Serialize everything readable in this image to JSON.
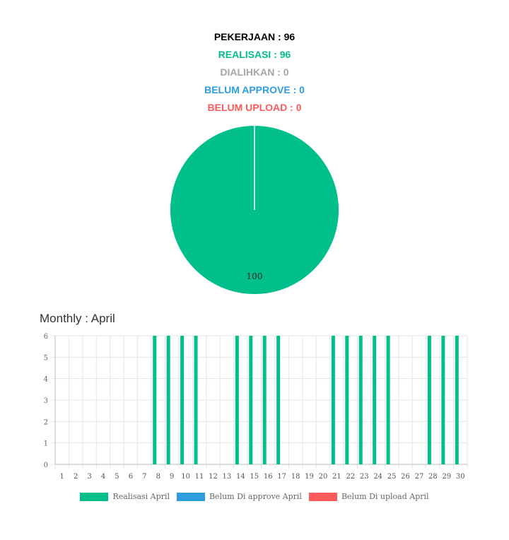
{
  "summary": {
    "pekerjaan": "PEKERJAAN : 96",
    "realisasi": "REALISASI : 96",
    "dialihkan": "DIALIHKAN : 0",
    "belum_approve": "BELUM APPROVE : 0",
    "belum_upload": "BELUM UPLOAD : 0"
  },
  "colors": {
    "black": "#000000",
    "green": "#00BF8A",
    "gray": "#a6a6a6",
    "blue": "#2E9DE0",
    "red": "#FF5A5A"
  },
  "monthly_title": "Monthly : April",
  "chart_data": [
    {
      "type": "pie",
      "slices": [
        {
          "value": 100,
          "color": "#00BF8A",
          "label": "100"
        }
      ]
    },
    {
      "type": "bar",
      "categories": [
        "1",
        "2",
        "3",
        "4",
        "5",
        "6",
        "7",
        "8",
        "9",
        "10",
        "11",
        "12",
        "13",
        "14",
        "15",
        "16",
        "17",
        "18",
        "19",
        "20",
        "21",
        "22",
        "23",
        "24",
        "25",
        "26",
        "27",
        "28",
        "29",
        "30"
      ],
      "series": [
        {
          "name": "Realisasi April",
          "color": "#00BF8A",
          "values": [
            0,
            0,
            0,
            0,
            0,
            0,
            0,
            6,
            6,
            6,
            6,
            0,
            0,
            6,
            6,
            6,
            6,
            0,
            0,
            0,
            6,
            6,
            6,
            6,
            6,
            0,
            0,
            6,
            6,
            6
          ]
        },
        {
          "name": "Belum Di approve April",
          "color": "#2E9DE0",
          "values": [
            0,
            0,
            0,
            0,
            0,
            0,
            0,
            0,
            0,
            0,
            0,
            0,
            0,
            0,
            0,
            0,
            0,
            0,
            0,
            0,
            0,
            0,
            0,
            0,
            0,
            0,
            0,
            0,
            0,
            0
          ]
        },
        {
          "name": "Belum Di upload April",
          "color": "#FF5A5A",
          "values": [
            0,
            0,
            0,
            0,
            0,
            0,
            0,
            0,
            0,
            0,
            0,
            0,
            0,
            0,
            0,
            0,
            0,
            0,
            0,
            0,
            0,
            0,
            0,
            0,
            0,
            0,
            0,
            0,
            0,
            0
          ]
        }
      ],
      "yticks": [
        "0",
        "1",
        "2",
        "3",
        "4",
        "5",
        "6"
      ],
      "ylim": [
        0,
        6
      ],
      "grid": true,
      "legend_position": "bottom"
    }
  ]
}
